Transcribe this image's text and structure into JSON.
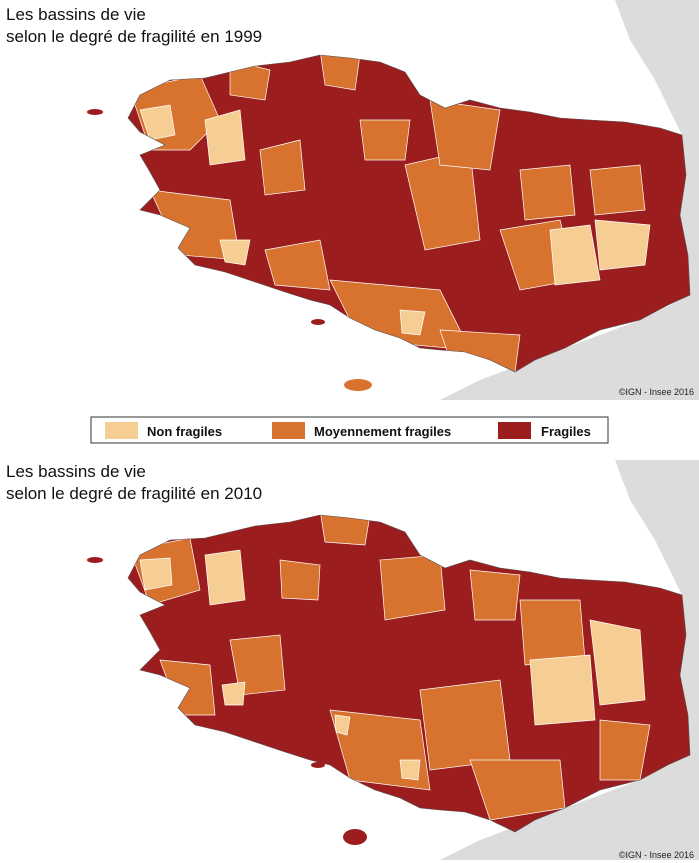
{
  "maps": [
    {
      "title": [
        "Les bassins de vie",
        "selon le degré de fragilité en 1999"
      ],
      "credit": "©IGN - Insee 2016"
    },
    {
      "title": [
        "Les bassins de vie",
        "selon le degré de fragilité en 2010"
      ],
      "credit": "©IGN - Insee 2016"
    }
  ],
  "legend": [
    {
      "label": "Non fragiles",
      "color": "#f6cd93"
    },
    {
      "label": "Moyennement fragiles",
      "color": "#d8722f"
    },
    {
      "label": "Fragiles",
      "color": "#9c1d1d"
    }
  ]
}
